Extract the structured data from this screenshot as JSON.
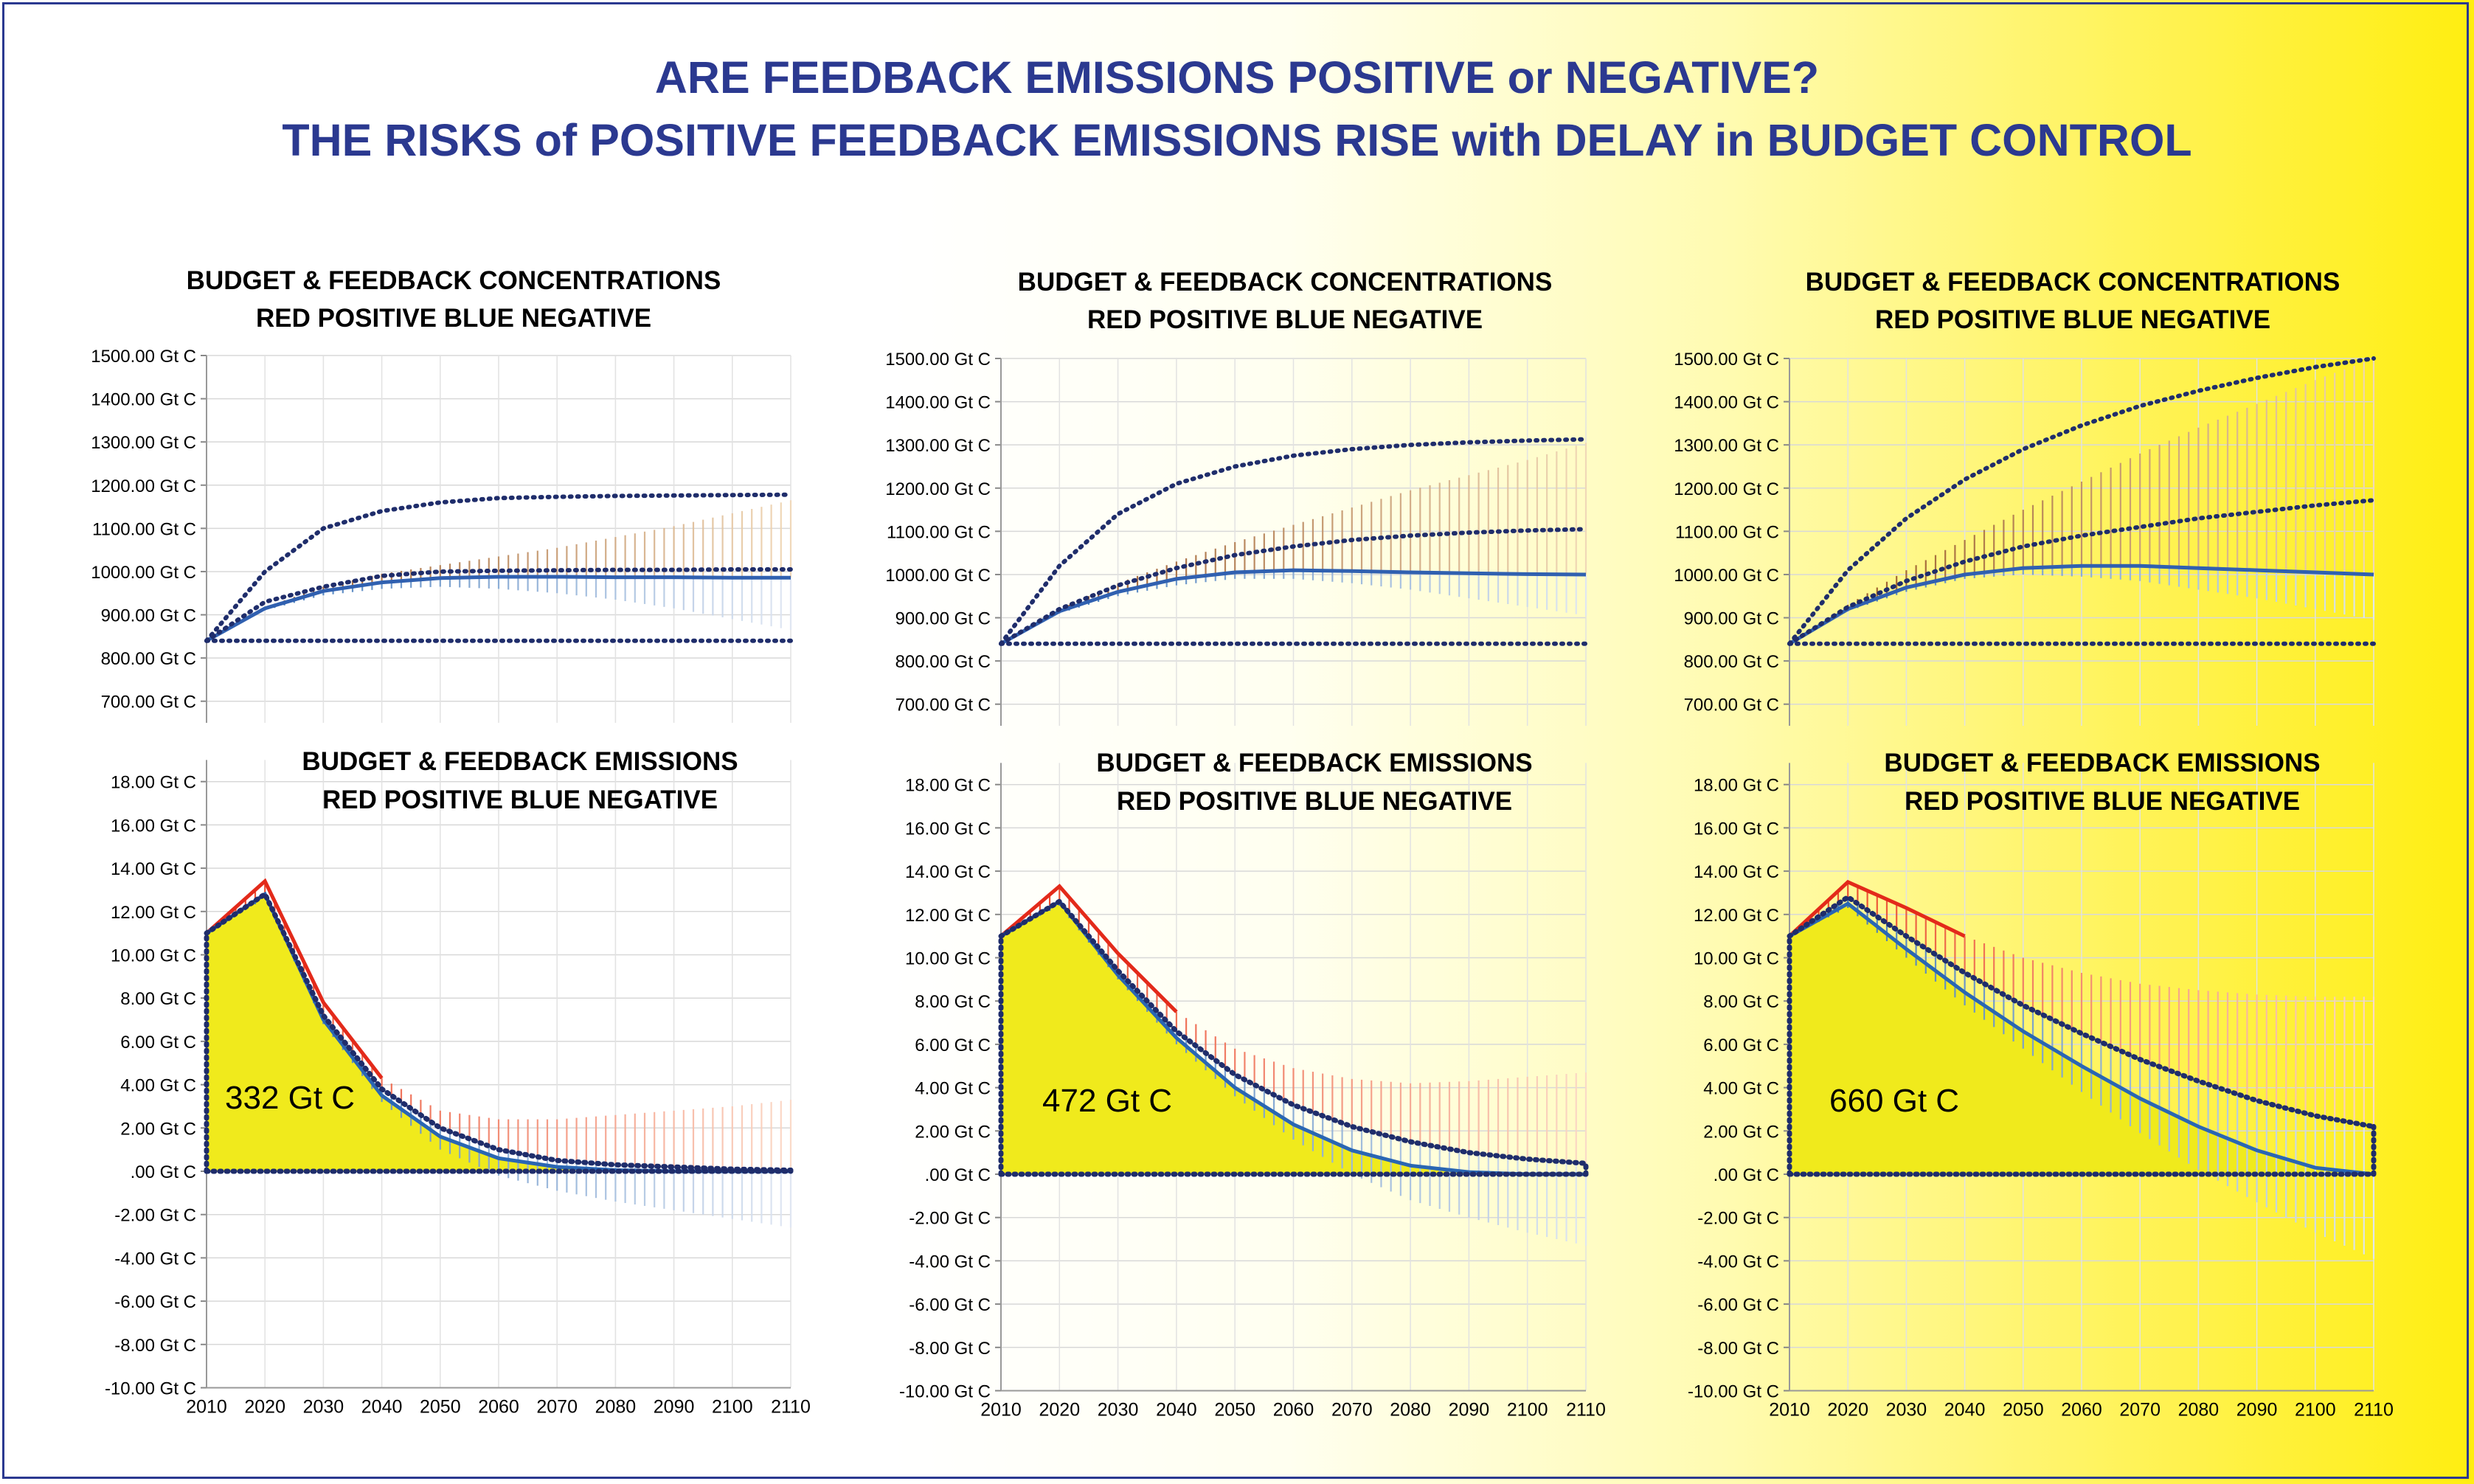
{
  "page": {
    "title_line1": "ARE  FEEDBACK EMISSIONS POSITIVE or NEGATIVE?",
    "title_line2": "THE RISKS of POSITIVE FEEDBACK EMISSIONS RISE with DELAY in BUDGET CONTROL",
    "colors": {
      "title": "#2b3990",
      "positive_feedback": "#a0521e",
      "negative_feedback": "#3f73c2",
      "positive_emissions": "#e83a1c",
      "negative_emissions": "#2f6db5",
      "budget_fill": "#f0ea1c",
      "dotted_line": "#1f2d6b"
    }
  },
  "chart_data": [
    {
      "panel": "left",
      "type": "area",
      "concentrations": {
        "title_line1": "BUDGET & FEEDBACK CONCENTRATIONS",
        "title_line2": "RED POSITIVE BLUE NEGATIVE",
        "yticks": [
          "1500.00 Gt C",
          "1400.00 Gt C",
          "1300.00 Gt C",
          "1200.00 Gt C",
          "1100.00 Gt C",
          "1000.00 Gt C",
          "900.00 Gt C",
          "800.00 Gt C",
          "700.00 Gt C"
        ],
        "ylim": [
          650,
          1500
        ],
        "grid": true,
        "baseline": 840,
        "x": [
          2010,
          2020,
          2030,
          2040,
          2050,
          2060,
          2070,
          2080,
          2090,
          2100,
          2110
        ],
        "budget": [
          840,
          915,
          955,
          975,
          985,
          988,
          988,
          987,
          987,
          986,
          986
        ],
        "budget_dotted": [
          840,
          930,
          965,
          990,
          1000,
          1002,
          1003,
          1004,
          1004,
          1005,
          1005
        ],
        "upper_dotted": [
          840,
          1000,
          1100,
          1140,
          1160,
          1170,
          1173,
          1175,
          1176,
          1177,
          1178
        ],
        "positive_upper": [
          840,
          918,
          965,
          995,
          1015,
          1035,
          1055,
          1080,
          1105,
          1135,
          1165
        ],
        "negative_lower": [
          840,
          910,
          945,
          960,
          965,
          960,
          950,
          935,
          915,
          890,
          865
        ]
      },
      "emissions": {
        "title_line1": "BUDGET & FEEDBACK EMISSIONS",
        "title_line2": "RED POSITIVE BLUE NEGATIVE",
        "yticks": [
          "18.00 Gt C",
          "16.00 Gt C",
          "14.00 Gt C",
          "12.00 Gt C",
          "10.00 Gt C",
          "8.00 Gt C",
          "6.00 Gt C",
          "4.00 Gt C",
          "2.00 Gt C",
          ".00 Gt C",
          "-2.00 Gt C",
          "-4.00 Gt C",
          "-6.00 Gt C",
          "-8.00 Gt C",
          "-10.00 Gt C"
        ],
        "ylim": [
          -10,
          19
        ],
        "xticks": [
          "2010",
          "2020",
          "2030",
          "2040",
          "2050",
          "2060",
          "2070",
          "2080",
          "2090",
          "2100",
          "2110"
        ],
        "grid": true,
        "budget_label": "332 Gt C",
        "x": [
          2010,
          2020,
          2030,
          2040,
          2050,
          2060,
          2070,
          2080,
          2090,
          2100,
          2110
        ],
        "budget": [
          11,
          12.8,
          7,
          3.5,
          1.6,
          0.6,
          0.2,
          0.05,
          0,
          0,
          0
        ],
        "budget_dotted": [
          11,
          12.8,
          7.2,
          3.8,
          2.0,
          1.0,
          0.5,
          0.3,
          0.2,
          0.1,
          0.05
        ],
        "positive_upper": [
          11,
          13.4,
          7.8,
          4.3,
          2.8,
          2.4,
          2.4,
          2.6,
          2.8,
          3.0,
          3.3
        ],
        "negative_lower": [
          11,
          12.6,
          6.8,
          3.2,
          1.0,
          -0.2,
          -0.9,
          -1.4,
          -1.8,
          -2.2,
          -2.6
        ]
      }
    },
    {
      "panel": "middle",
      "type": "area",
      "concentrations": {
        "title_line1": "BUDGET & FEEDBACK CONCENTRATIONS",
        "title_line2": "RED POSITIVE BLUE NEGATIVE",
        "yticks": [
          "1500.00 Gt C",
          "1400.00 Gt C",
          "1300.00 Gt C",
          "1200.00 Gt C",
          "1100.00 Gt C",
          "1000.00 Gt C",
          "900.00 Gt C",
          "800.00 Gt C",
          "700.00 Gt C"
        ],
        "ylim": [
          650,
          1500
        ],
        "grid": true,
        "baseline": 840,
        "x": [
          2010,
          2020,
          2030,
          2040,
          2050,
          2060,
          2070,
          2080,
          2090,
          2100,
          2110
        ],
        "budget": [
          840,
          915,
          960,
          990,
          1005,
          1010,
          1008,
          1005,
          1003,
          1001,
          1000
        ],
        "budget_dotted": [
          840,
          920,
          975,
          1015,
          1045,
          1065,
          1080,
          1090,
          1097,
          1102,
          1105
        ],
        "upper_dotted": [
          840,
          1020,
          1140,
          1210,
          1250,
          1275,
          1290,
          1300,
          1306,
          1310,
          1313
        ],
        "positive_upper": [
          840,
          920,
          980,
          1030,
          1075,
          1115,
          1155,
          1195,
          1230,
          1265,
          1305
        ],
        "negative_lower": [
          840,
          910,
          950,
          975,
          990,
          990,
          980,
          965,
          945,
          925,
          905
        ]
      },
      "emissions": {
        "title_line1": "BUDGET & FEEDBACK EMISSIONS",
        "title_line2": "RED POSITIVE BLUE NEGATIVE",
        "yticks": [
          "18.00 Gt C",
          "16.00 Gt C",
          "14.00 Gt C",
          "12.00 Gt C",
          "10.00 Gt C",
          "8.00 Gt C",
          "6.00 Gt C",
          "4.00 Gt C",
          "2.00 Gt C",
          ".00 Gt C",
          "-2.00 Gt C",
          "-4.00 Gt C",
          "-6.00 Gt C",
          "-8.00 Gt C",
          "-10.00 Gt C"
        ],
        "ylim": [
          -10,
          19
        ],
        "xticks": [
          "2010",
          "2020",
          "2030",
          "2040",
          "2050",
          "2060",
          "2070",
          "2080",
          "2090",
          "2100",
          "2110"
        ],
        "grid": true,
        "budget_label": "472 Gt C",
        "x": [
          2010,
          2020,
          2030,
          2040,
          2050,
          2060,
          2070,
          2080,
          2090,
          2100,
          2110
        ],
        "budget": [
          11,
          12.6,
          9.2,
          6.3,
          4.0,
          2.3,
          1.1,
          0.4,
          0.1,
          0,
          0
        ],
        "budget_dotted": [
          11,
          12.6,
          9.4,
          6.6,
          4.6,
          3.2,
          2.2,
          1.5,
          1.0,
          0.7,
          0.5
        ],
        "positive_upper": [
          11,
          13.3,
          10.2,
          7.5,
          5.8,
          4.9,
          4.4,
          4.2,
          4.3,
          4.5,
          4.7
        ],
        "negative_lower": [
          11,
          12.4,
          9.0,
          6.0,
          3.6,
          1.6,
          0.0,
          -1.2,
          -2.0,
          -2.7,
          -3.3
        ]
      }
    },
    {
      "panel": "right",
      "type": "area",
      "concentrations": {
        "title_line1": "BUDGET & FEEDBACK CONCENTRATIONS",
        "title_line2": "RED POSITIVE BLUE NEGATIVE",
        "yticks": [
          "1500.00 Gt C",
          "1400.00 Gt C",
          "1300.00 Gt C",
          "1200.00 Gt C",
          "1100.00 Gt C",
          "1000.00 Gt C",
          "900.00 Gt C",
          "800.00 Gt C",
          "700.00 Gt C"
        ],
        "ylim": [
          650,
          1500
        ],
        "grid": true,
        "baseline": 840,
        "x": [
          2010,
          2020,
          2030,
          2040,
          2050,
          2060,
          2070,
          2080,
          2090,
          2100,
          2110
        ],
        "budget": [
          840,
          920,
          970,
          1000,
          1015,
          1020,
          1020,
          1015,
          1010,
          1005,
          1000
        ],
        "budget_dotted": [
          840,
          925,
          985,
          1030,
          1065,
          1090,
          1110,
          1130,
          1145,
          1160,
          1172
        ],
        "upper_dotted": [
          840,
          1010,
          1130,
          1220,
          1290,
          1345,
          1390,
          1425,
          1455,
          1480,
          1500
        ],
        "positive_upper": [
          840,
          930,
          1010,
          1080,
          1150,
          1215,
          1280,
          1340,
          1395,
          1450,
          1500
        ],
        "negative_lower": [
          840,
          915,
          960,
          990,
          1000,
          995,
          985,
          965,
          945,
          920,
          895
        ]
      },
      "emissions": {
        "title_line1": "BUDGET & FEEDBACK EMISSIONS",
        "title_line2": "RED POSITIVE BLUE NEGATIVE",
        "yticks": [
          "18.00 Gt C",
          "16.00 Gt C",
          "14.00 Gt C",
          "12.00 Gt C",
          "10.00 Gt C",
          "8.00 Gt C",
          "6.00 Gt C",
          "4.00 Gt C",
          "2.00 Gt C",
          ".00 Gt C",
          "-2.00 Gt C",
          "-4.00 Gt C",
          "-6.00 Gt C",
          "-8.00 Gt C",
          "-10.00 Gt C"
        ],
        "ylim": [
          -10,
          19
        ],
        "xticks": [
          "2010",
          "2020",
          "2030",
          "2040",
          "2050",
          "2060",
          "2070",
          "2080",
          "2090",
          "2100",
          "2110"
        ],
        "grid": true,
        "budget_label": "660 Gt C",
        "x": [
          2010,
          2020,
          2030,
          2040,
          2050,
          2060,
          2070,
          2080,
          2090,
          2100,
          2110
        ],
        "budget": [
          11,
          12.5,
          10.4,
          8.4,
          6.6,
          5.0,
          3.5,
          2.2,
          1.1,
          0.3,
          0
        ],
        "budget_dotted": [
          11,
          12.8,
          11.0,
          9.3,
          7.8,
          6.5,
          5.3,
          4.3,
          3.4,
          2.7,
          2.2
        ],
        "positive_upper": [
          11,
          13.5,
          12.3,
          11.0,
          10.0,
          9.3,
          8.8,
          8.5,
          8.3,
          8.2,
          8.2
        ],
        "negative_lower": [
          11,
          12.3,
          10.0,
          7.8,
          5.8,
          3.8,
          1.9,
          0.2,
          -1.3,
          -2.7,
          -3.9
        ]
      }
    }
  ]
}
